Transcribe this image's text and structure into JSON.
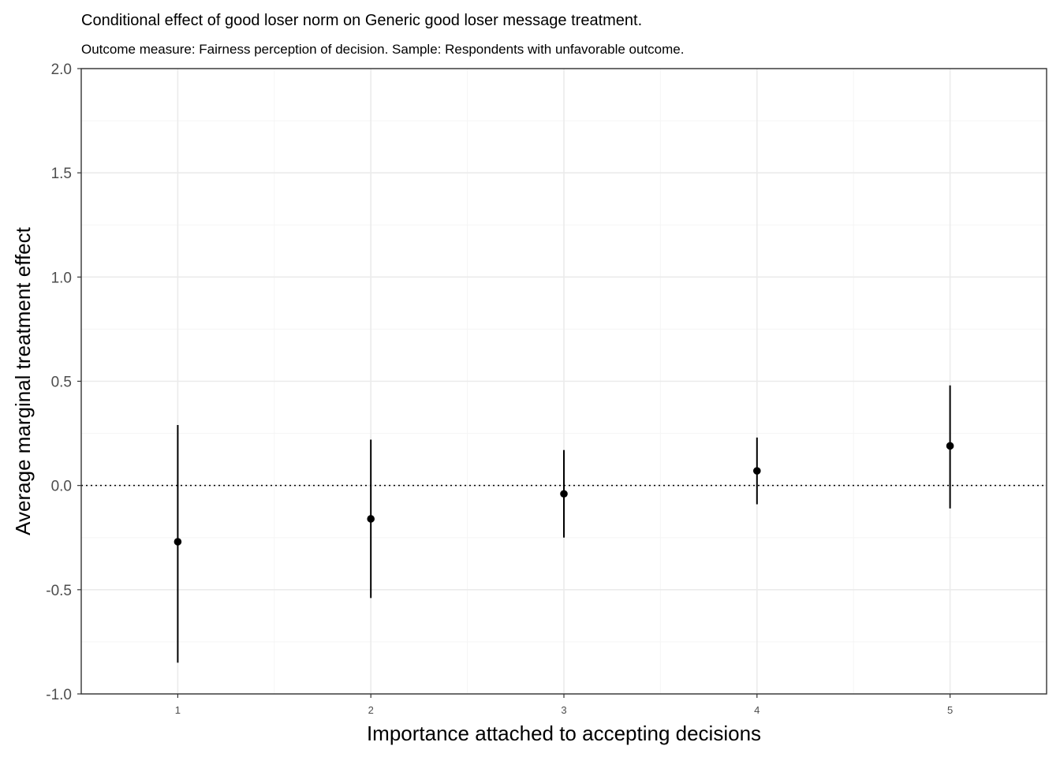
{
  "chart_data": {
    "type": "scatter",
    "title": "Conditional effect of good loser norm on Generic good loser message treatment.",
    "subtitle": "Outcome measure: Fairness perception of decision. Sample: Respondents with unfavorable outcome.",
    "xlabel": "Importance attached to accepting decisions",
    "ylabel": "Average marginal treatment effect",
    "xlim": [
      0.5,
      5.5
    ],
    "ylim": [
      -1.0,
      2.0
    ],
    "x_ticks": [
      "1",
      "2",
      "3",
      "4",
      "5"
    ],
    "y_ticks": [
      "-1.0",
      "-0.5",
      "0.0",
      "0.5",
      "1.0",
      "1.5",
      "2.0"
    ],
    "reference_line": {
      "y": 0.0,
      "style": "dotted"
    },
    "grid": true,
    "series": [
      {
        "x": [
          1,
          2,
          3,
          4,
          5
        ],
        "y": [
          -0.27,
          -0.16,
          -0.04,
          0.07,
          0.19
        ],
        "ci_low": [
          -0.85,
          -0.54,
          -0.25,
          -0.09,
          -0.11
        ],
        "ci_high": [
          0.29,
          0.22,
          0.17,
          0.23,
          0.48
        ]
      }
    ],
    "colors": {
      "point": "#000000",
      "grid_major": "#ebebeb",
      "grid_minor": "#f5f5f5",
      "panel_border": "#333333",
      "tick_text": "#4d4d4d"
    }
  }
}
